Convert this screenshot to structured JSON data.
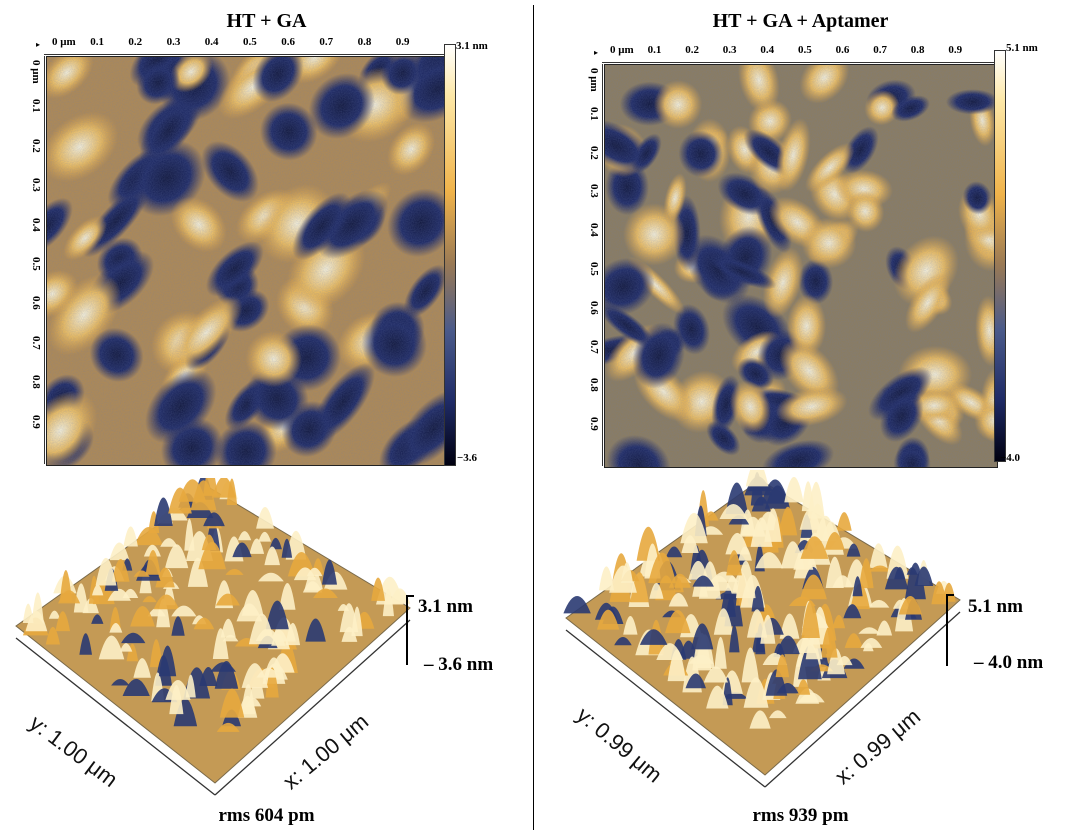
{
  "left": {
    "title": "HT + GA",
    "ruler_x": [
      "0 μm",
      "0.1",
      "0.2",
      "0.3",
      "0.4",
      "0.5",
      "0.6",
      "0.7",
      "0.8",
      "0.9"
    ],
    "ruler_y": [
      "0 μm",
      "0.1",
      "0.2",
      "0.3",
      "0.4",
      "0.5",
      "0.6",
      "0.7",
      "0.8",
      "0.9"
    ],
    "scale_max": "3.1 nm",
    "scale_min": "−3.6",
    "z_max": "3.1 nm",
    "z_min": "– 3.6 nm",
    "axis_y": "y: 1.00 μm",
    "axis_x": "x: 1.00 μm",
    "rms": "rms 604 pm"
  },
  "right": {
    "title": "HT + GA + Aptamer",
    "ruler_x": [
      "0 μm",
      "0.1",
      "0.2",
      "0.3",
      "0.4",
      "0.5",
      "0.6",
      "0.7",
      "0.8",
      "0.9"
    ],
    "ruler_y": [
      "0 μm",
      "0.1",
      "0.2",
      "0.3",
      "0.4",
      "0.5",
      "0.6",
      "0.7",
      "0.8",
      "0.9"
    ],
    "scale_max": "5.1 nm",
    "scale_min": "−4.0",
    "z_max": "5.1 nm",
    "z_min": "– 4.0 nm",
    "axis_y": "y: 0.99 μm",
    "axis_x": "x: 0.99 μm",
    "rms": "rms 939 pm"
  },
  "colors": {
    "colormap_high": "#fff8dc",
    "colormap_mid": "#e8a63a",
    "colormap_low": "#1a2560"
  }
}
